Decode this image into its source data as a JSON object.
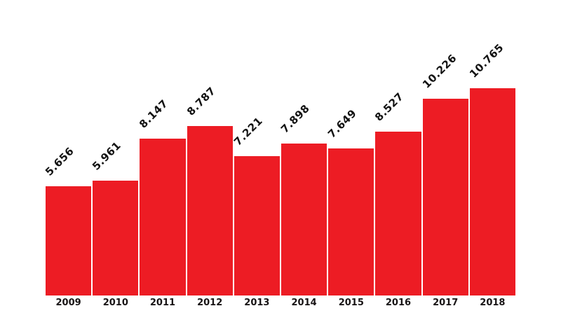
{
  "chart_data": {
    "type": "bar",
    "title": "",
    "xlabel": "",
    "ylabel": "",
    "categories": [
      "2009",
      "2010",
      "2011",
      "2012",
      "2013",
      "2014",
      "2015",
      "2016",
      "2017",
      "2018"
    ],
    "values": [
      5.656,
      5.961,
      8.147,
      8.787,
      7.221,
      7.898,
      7.649,
      8.527,
      10.226,
      10.765
    ],
    "value_labels": [
      "5.656",
      "5.961",
      "8.147",
      "8.787",
      "7.221",
      "7.898",
      "7.649",
      "8.527",
      "10.226",
      "10.765"
    ],
    "ylim": [
      0,
      11
    ],
    "grid": false,
    "legend": "none",
    "bar_color": "#ed1c24",
    "value_label_color": "#111111",
    "axis_label_color": "#181415",
    "value_label_rotation_deg": -45
  }
}
